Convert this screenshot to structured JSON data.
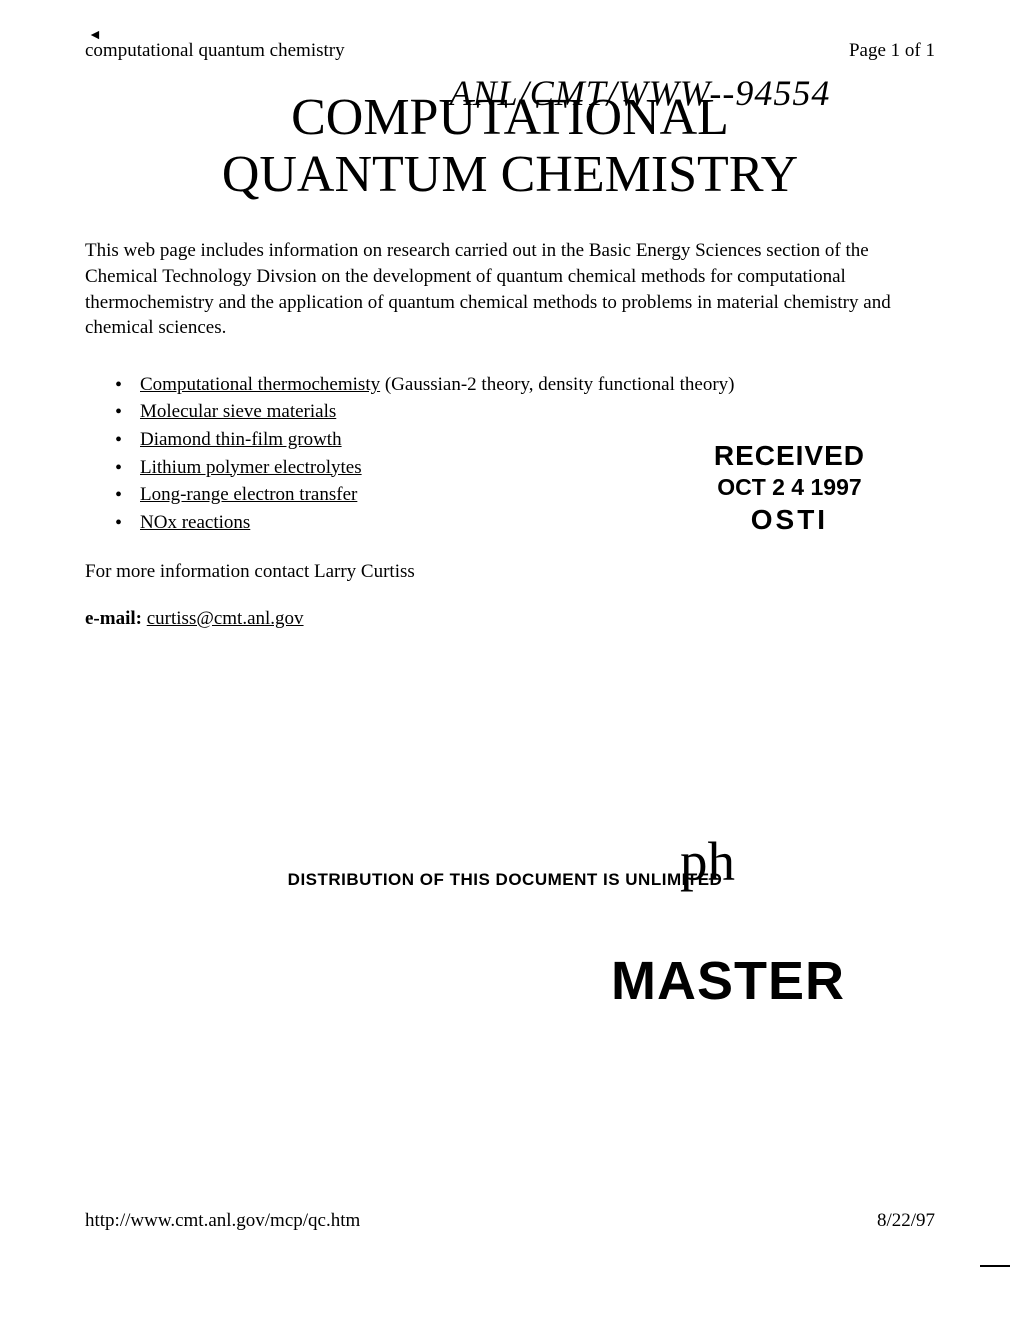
{
  "header": {
    "left": "computational quantum chemistry",
    "right": "Page 1 of 1"
  },
  "handwritten": "ANL/CMT/WWW--94554",
  "title": {
    "line1": "COMPUTATIONAL",
    "line2": "QUANTUM CHEMISTRY"
  },
  "intro": "This web page includes information on research carried out in the Basic Energy Sciences section of the Chemical Technology Divsion on the development of quantum chemical methods for computational thermochemistry and the application of quantum chemical methods to problems in material chemistry and chemical sciences.",
  "bullets": [
    {
      "link": "Computational thermochemisty",
      "rest": " (Gaussian-2 theory, density functional theory)"
    },
    {
      "link": "Molecular sieve materials",
      "rest": ""
    },
    {
      "link": "Diamond thin-film growth",
      "rest": ""
    },
    {
      "link": "Lithium polymer electrolytes",
      "rest": ""
    },
    {
      "link": "Long-range electron transfer",
      "rest": ""
    },
    {
      "link": "NOx reactions",
      "rest": ""
    }
  ],
  "contact": "For more information contact Larry Curtiss",
  "email": {
    "label": "e-mail: ",
    "value": "curtiss@cmt.anl.gov"
  },
  "stamp": {
    "received": "RECEIVED",
    "date": "OCT 2 4 1997",
    "osti": "OSTI"
  },
  "distribution": "DISTRIBUTION OF THIS DOCUMENT IS UNLIMITED",
  "initial": "ph",
  "master": "MASTER",
  "footer": {
    "url": "http://www.cmt.anl.gov/mcp/qc.htm",
    "date": "8/22/97"
  },
  "colors": {
    "background": "#ffffff",
    "text": "#000000"
  }
}
